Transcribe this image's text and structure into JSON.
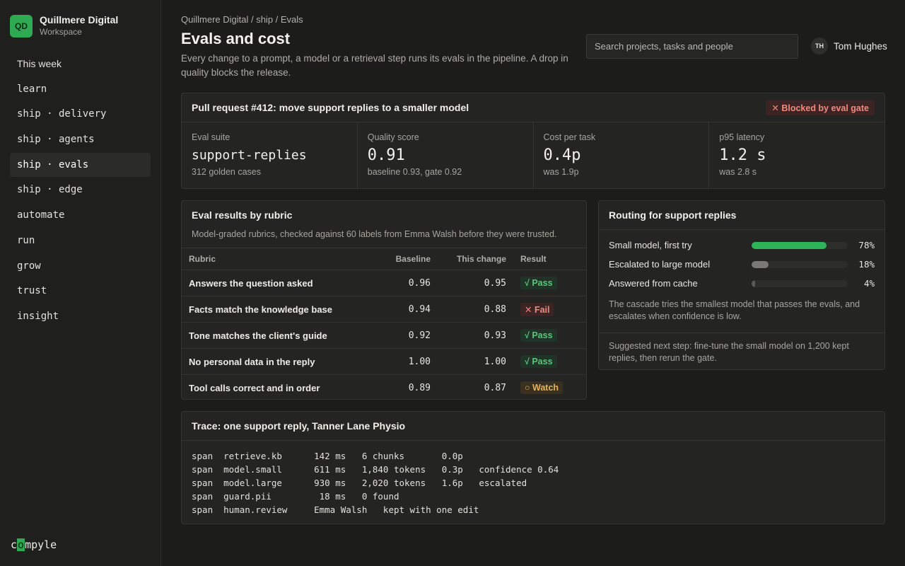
{
  "brand": {
    "initials": "QD",
    "name": "Quillmere Digital",
    "sub": "Workspace"
  },
  "nav": [
    {
      "label": "This week",
      "style": "plain",
      "active": false
    },
    {
      "label": "learn",
      "style": "code",
      "active": false
    },
    {
      "label": "ship · delivery",
      "style": "code",
      "active": false
    },
    {
      "label": "ship · agents",
      "style": "code",
      "active": false
    },
    {
      "label": "ship · evals",
      "style": "code",
      "active": true
    },
    {
      "label": "ship · edge",
      "style": "code",
      "active": false
    },
    {
      "label": "automate",
      "style": "code",
      "active": false
    },
    {
      "label": "run",
      "style": "code",
      "active": false
    },
    {
      "label": "grow",
      "style": "code",
      "active": false
    },
    {
      "label": "trust",
      "style": "code",
      "active": false
    },
    {
      "label": "insight",
      "style": "code",
      "active": false
    }
  ],
  "footer_logo": {
    "pre": "c",
    "hl": "o",
    "post": "mpyle"
  },
  "breadcrumb": "Quillmere Digital / ship / Evals",
  "page": {
    "title": "Evals and cost",
    "description": "Every change to a prompt, a model or a retrieval step runs its evals in the pipeline. A drop in quality blocks the release."
  },
  "search": {
    "placeholder": "Search projects, tasks and people",
    "value": ""
  },
  "user": {
    "initials": "TH",
    "name": "Tom Hughes"
  },
  "pr": {
    "title": "Pull request #412: move support replies to a smaller model",
    "badge": "✕ Blocked by eval gate",
    "metrics": [
      {
        "label": "Eval suite",
        "value": "support-replies",
        "sub": "312 golden cases"
      },
      {
        "label": "Quality score",
        "value": "0.91",
        "sub": "baseline 0.93, gate 0.92"
      },
      {
        "label": "Cost per task",
        "value": "0.4p",
        "sub": "was 1.9p"
      },
      {
        "label": "p95 latency",
        "value": "1.2 s",
        "sub": "was 2.8 s"
      }
    ]
  },
  "evals": {
    "title": "Eval results by rubric",
    "description": "Model-graded rubrics, checked against 60 labels from Emma Walsh before they were trusted.",
    "headers": {
      "rubric": "Rubric",
      "baseline": "Baseline",
      "change": "This change",
      "result": "Result"
    },
    "rows": [
      {
        "rubric": "Answers the question asked",
        "baseline": "0.96",
        "change": "0.95",
        "result": "√ Pass",
        "status": "pass"
      },
      {
        "rubric": "Facts match the knowledge base",
        "baseline": "0.94",
        "change": "0.88",
        "result": "✕ Fail",
        "status": "fail"
      },
      {
        "rubric": "Tone matches the client's guide",
        "baseline": "0.92",
        "change": "0.93",
        "result": "√ Pass",
        "status": "pass"
      },
      {
        "rubric": "No personal data in the reply",
        "baseline": "1.00",
        "change": "1.00",
        "result": "√ Pass",
        "status": "pass"
      },
      {
        "rubric": "Tool calls correct and in order",
        "baseline": "0.89",
        "change": "0.87",
        "result": "○ Watch",
        "status": "watch"
      }
    ]
  },
  "routing": {
    "title": "Routing for support replies",
    "rows": [
      {
        "label": "Small model, first try",
        "value": 78,
        "pct": "78%",
        "color": "#2eb55a"
      },
      {
        "label": "Escalated to large model",
        "value": 18,
        "pct": "18%",
        "color": "#7a7975"
      },
      {
        "label": "Answered from cache",
        "value": 4,
        "pct": "4%",
        "color": "#5a5956"
      }
    ],
    "note": "The cascade tries the smallest model that passes the evals, and escalates when confidence is low.",
    "next": "Suggested next step: fine-tune the small model on 1,200 kept replies, then rerun the gate."
  },
  "trace": {
    "title": "Trace: one support reply, Tanner Lane Physio",
    "lines": [
      "span  retrieve.kb      142 ms   6 chunks       0.0p",
      "span  model.small      611 ms   1,840 tokens   0.3p   confidence 0.64",
      "span  model.large      930 ms   2,020 tokens   1.6p   escalated",
      "span  guard.pii         18 ms   0 found",
      "span  human.review     Emma Walsh   kept with one edit"
    ]
  }
}
